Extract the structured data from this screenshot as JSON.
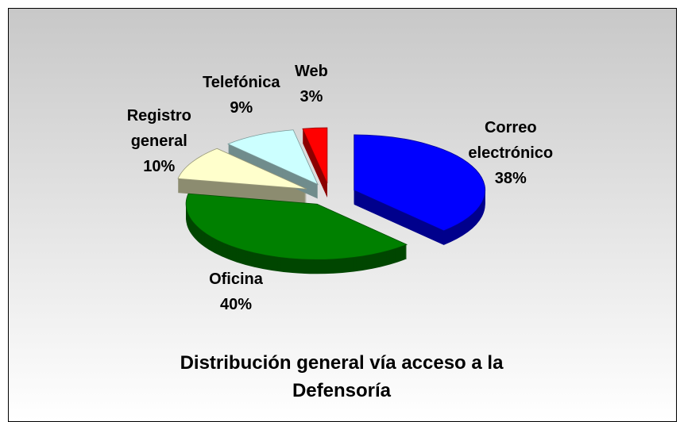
{
  "chart_data": {
    "type": "pie",
    "title": "Distribución general vía acceso a la Defensoría",
    "categories": [
      "Correo electrónico",
      "Oficina",
      "Registro general",
      "Telefónica",
      "Web"
    ],
    "values": [
      38,
      40,
      10,
      9,
      3
    ],
    "value_labels": [
      "38%",
      "40%",
      "10%",
      "9%",
      "3%"
    ],
    "colors": [
      "#0000ff",
      "#008000",
      "#ffffcc",
      "#ccffff",
      "#ff0000"
    ]
  }
}
